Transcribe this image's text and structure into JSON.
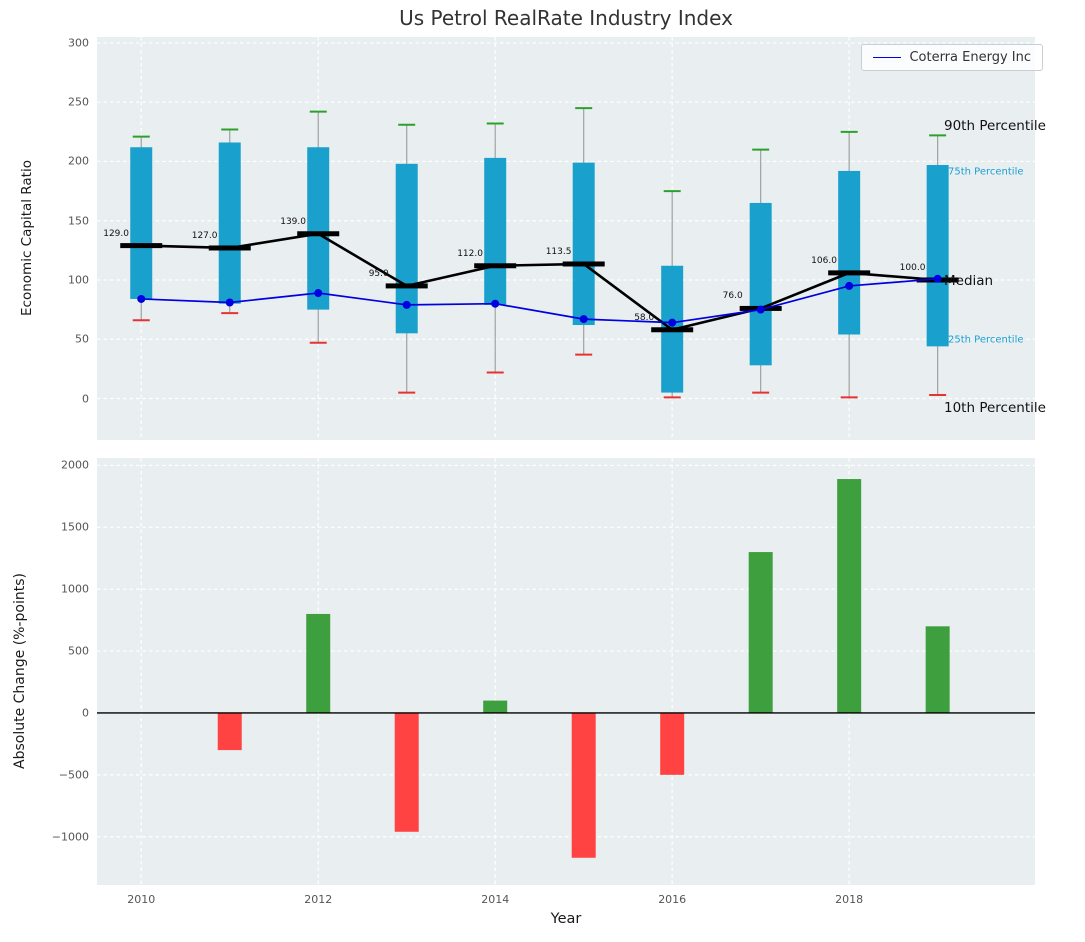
{
  "colors": {
    "plot_bg": "#e9eff1",
    "grid": "#ffffff",
    "box": "#1aa0cd",
    "whisker": "#a0a0a0",
    "p90_cap": "#2ca02c",
    "p10_cap": "#e53333",
    "median": "#000000",
    "company_line": "#0000e0",
    "bar_positive": "#3d9f3d",
    "bar_negative": "#ff4343",
    "zero_line": "#000000",
    "annotation_minor": "#1a9fd0"
  },
  "chart_data": [
    {
      "type": "boxplot+line",
      "title": "Us Petrol RealRate Industry Index",
      "ylabel": "Economic Capital Ratio",
      "legend_label": "Coterra Energy Inc",
      "legend_position": "upper right",
      "grid": true,
      "ylim": [
        -35,
        305
      ],
      "xlim": [
        2009.5,
        2020.1
      ],
      "yticks": [
        0,
        50,
        100,
        150,
        200,
        250,
        300
      ],
      "ytick_labels": [
        "0",
        "50",
        "100",
        "150",
        "200",
        "250",
        "300"
      ],
      "xticks": [
        2010,
        2012,
        2014,
        2016,
        2018
      ],
      "years": [
        2010,
        2011,
        2012,
        2013,
        2014,
        2015,
        2016,
        2017,
        2018,
        2019
      ],
      "percentiles": {
        "p90": [
          221,
          227,
          242,
          231,
          232,
          245,
          175,
          210,
          225,
          222
        ],
        "p75": [
          212,
          216,
          212,
          198,
          203,
          199,
          112,
          165,
          192,
          197
        ],
        "median": [
          129,
          127,
          139,
          95,
          112,
          113.5,
          58,
          76,
          106,
          100
        ],
        "p25": [
          84,
          80,
          75,
          55,
          79,
          62,
          5,
          28,
          54,
          44
        ],
        "p10": [
          66,
          72,
          47,
          5,
          22,
          37,
          1,
          5,
          1,
          3
        ]
      },
      "median_labels": [
        "129.0",
        "127.0",
        "139.0",
        "95.0",
        "112.0",
        "113.5",
        "58.0",
        "76.0",
        "106.0",
        "100.0"
      ],
      "company_series": {
        "name": "Coterra Energy Inc",
        "values": [
          84,
          81,
          89,
          79,
          80,
          67,
          64,
          75,
          95,
          101
        ]
      },
      "annotations": [
        {
          "label": "90th Percentile",
          "value": 230,
          "style": "major"
        },
        {
          "label": "75th Percentile",
          "value": 191,
          "style": "minor"
        },
        {
          "label": "Median",
          "value": 99,
          "style": "major"
        },
        {
          "label": "25th Percentile",
          "value": 49,
          "style": "minor"
        },
        {
          "label": "10th Percentile",
          "value": -8,
          "style": "major"
        }
      ]
    },
    {
      "type": "bar",
      "xlabel": "Year",
      "ylabel": "Absolute Change (%-points)",
      "grid": true,
      "ylim": [
        -1390,
        2060
      ],
      "xlim": [
        2009.5,
        2020.1
      ],
      "yticks": [
        -1000,
        -500,
        0,
        500,
        1000,
        1500,
        2000
      ],
      "ytick_labels": [
        "−1000",
        "−500",
        "0",
        "500",
        "1000",
        "1500",
        "2000"
      ],
      "xticks": [
        2010,
        2012,
        2014,
        2016,
        2018
      ],
      "xtick_labels": [
        "2010",
        "2012",
        "2014",
        "2016",
        "2018"
      ],
      "categories": [
        2010,
        2011,
        2012,
        2013,
        2014,
        2015,
        2016,
        2017,
        2018,
        2019
      ],
      "values": [
        0,
        -300,
        800,
        -960,
        100,
        -1170,
        -500,
        1300,
        1890,
        700
      ]
    }
  ]
}
